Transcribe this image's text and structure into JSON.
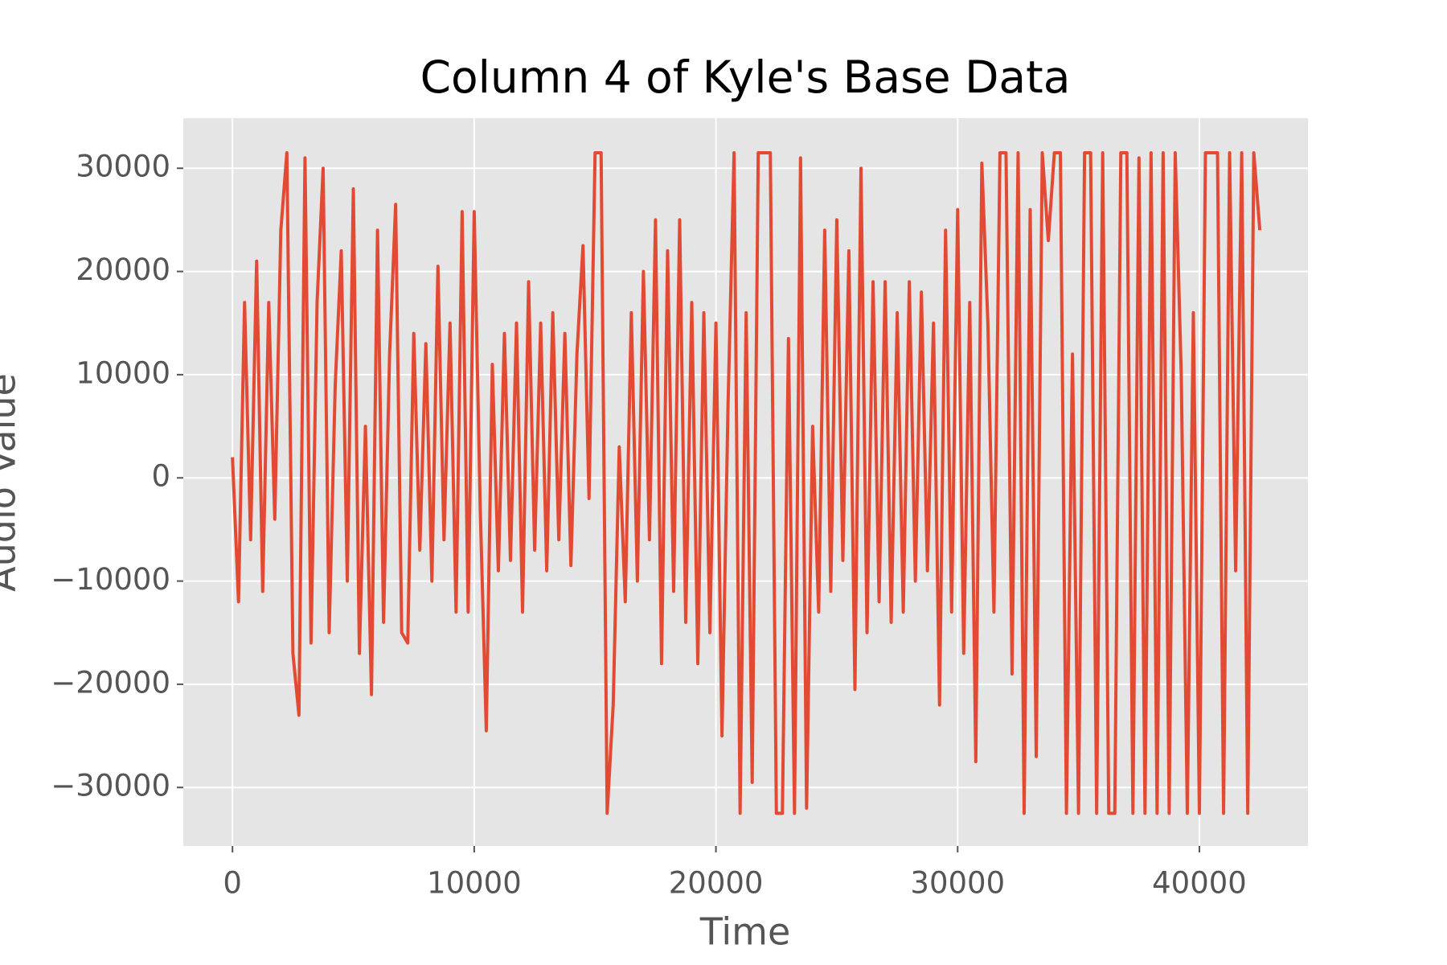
{
  "chart_data": {
    "type": "line",
    "title": "Column 4 of Kyle's Base Data",
    "x_label": "Time",
    "y_label": "Audio Value",
    "x": [
      0,
      250,
      500,
      750,
      1000,
      1250,
      1500,
      1750,
      2000,
      2250,
      2500,
      2750,
      3000,
      3250,
      3500,
      3750,
      4000,
      4250,
      4500,
      4750,
      5000,
      5250,
      5500,
      5750,
      6000,
      6250,
      6500,
      6750,
      7000,
      7250,
      7500,
      7750,
      8000,
      8250,
      8500,
      8750,
      9000,
      9250,
      9500,
      9750,
      10000,
      10250,
      10500,
      10750,
      11000,
      11250,
      11500,
      11750,
      12000,
      12250,
      12500,
      12750,
      13000,
      13250,
      13500,
      13750,
      14000,
      14250,
      14500,
      14750,
      15000,
      15250,
      15500,
      15750,
      16000,
      16250,
      16500,
      16750,
      17000,
      17250,
      17500,
      17750,
      18000,
      18250,
      18500,
      18750,
      19000,
      19250,
      19500,
      19750,
      20000,
      20250,
      20500,
      20750,
      21000,
      21250,
      21500,
      21750,
      22000,
      22250,
      22500,
      22750,
      23000,
      23250,
      23500,
      23750,
      24000,
      24250,
      24500,
      24750,
      25000,
      25250,
      25500,
      25750,
      26000,
      26250,
      26500,
      26750,
      27000,
      27250,
      27500,
      27750,
      28000,
      28250,
      28500,
      28750,
      29000,
      29250,
      29500,
      29750,
      30000,
      30250,
      30500,
      30750,
      31000,
      31250,
      31500,
      31750,
      32000,
      32250,
      32500,
      32750,
      33000,
      33250,
      33500,
      33750,
      34000,
      34250,
      34500,
      34750,
      35000,
      35250,
      35500,
      35750,
      36000,
      36250,
      36500,
      36750,
      37000,
      37250,
      37500,
      37750,
      38000,
      38250,
      38500,
      38750,
      39000,
      39250,
      39500,
      39750,
      40000,
      40250,
      40500,
      40750,
      41000,
      41250,
      41500,
      41750,
      42000,
      42250,
      42500
    ],
    "series": [
      {
        "name": "Audio Value",
        "color": "#E24A33",
        "values": [
          2000,
          -12000,
          17000,
          -6000,
          21000,
          -11000,
          17000,
          -4000,
          24000,
          31500,
          -17000,
          -23000,
          31000,
          -16000,
          17000,
          30000,
          -15000,
          9000,
          22000,
          -10000,
          28000,
          -17000,
          5000,
          -21000,
          24000,
          -14000,
          12000,
          26500,
          -15000,
          -16000,
          14000,
          -7000,
          13000,
          -10000,
          20500,
          -6000,
          15000,
          -13000,
          25800,
          -13000,
          25800,
          -3000,
          -24500,
          11000,
          -9000,
          14000,
          -8000,
          15000,
          -13000,
          19000,
          -7000,
          15000,
          -9000,
          16000,
          -6000,
          14000,
          -8500,
          12000,
          22500,
          -2000,
          31500,
          31500,
          -32500,
          -22000,
          3000,
          -12000,
          16000,
          -10000,
          20000,
          -6000,
          25000,
          -18000,
          22000,
          -11000,
          25000,
          -14000,
          17000,
          -18000,
          16000,
          -15000,
          15000,
          -25000,
          7000,
          31500,
          -32500,
          16000,
          -29500,
          31500,
          31500,
          31500,
          -32500,
          -32500,
          13500,
          -32500,
          31000,
          -32000,
          5000,
          -13000,
          24000,
          -11000,
          25000,
          -8000,
          22000,
          -20500,
          30000,
          -15000,
          19000,
          -12000,
          19000,
          -14000,
          16000,
          -13000,
          19000,
          -10000,
          18000,
          -9000,
          15000,
          -22000,
          24000,
          -13000,
          26000,
          -17000,
          17000,
          -27500,
          30500,
          15000,
          -13000,
          31500,
          31500,
          -19000,
          31500,
          -32500,
          26000,
          -27000,
          31500,
          23000,
          31500,
          31500,
          -32500,
          12000,
          -32500,
          31500,
          31500,
          -32500,
          31500,
          -32500,
          -32500,
          31500,
          31500,
          -32500,
          31000,
          -32500,
          31500,
          -32500,
          31500,
          -32500,
          31500,
          10000,
          -32500,
          16000,
          -32500,
          31500,
          31500,
          31500,
          -32500,
          31500,
          -9000,
          31500,
          -32500,
          31500,
          24000
        ]
      }
    ],
    "xlim": [
      -2035,
      44490
    ],
    "ylim": [
      -35670,
      34850
    ],
    "xticks": [
      0,
      10000,
      20000,
      30000,
      40000
    ],
    "yticks": [
      {
        "value": -30000,
        "label": "−30000"
      },
      {
        "value": -20000,
        "label": "−20000"
      },
      {
        "value": -10000,
        "label": "−10000"
      },
      0,
      10000,
      20000,
      30000
    ],
    "grid": true
  }
}
